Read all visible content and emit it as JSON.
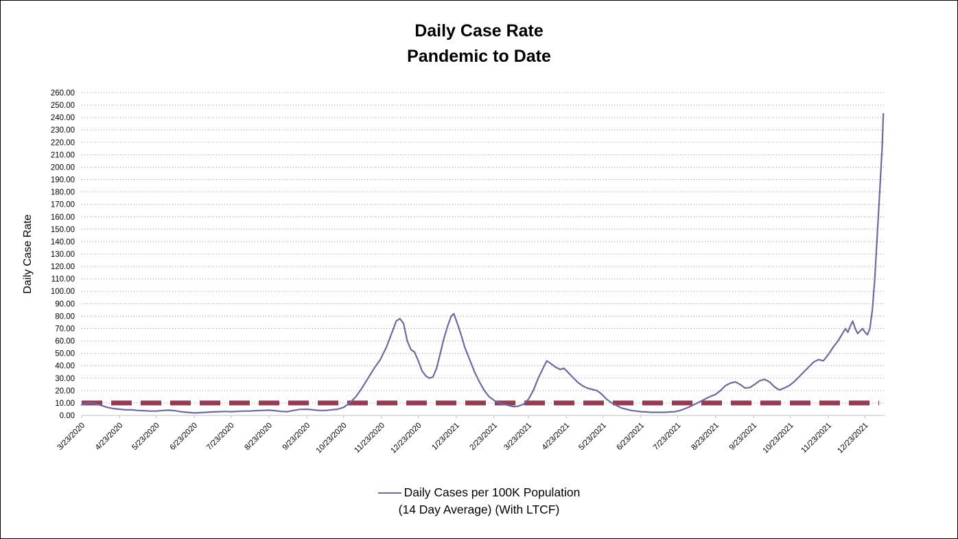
{
  "chart_data": {
    "type": "line",
    "title": "Daily Case Rate",
    "subtitle": "Pandemic to Date",
    "ylabel": "Daily Case Rate",
    "xlabel": "",
    "ylim": [
      0,
      260
    ],
    "y_step": 10,
    "y_tick_format": "0.00",
    "grid": "dotted-horizontal",
    "x_domain": [
      "3/23/2020",
      "1/8/2022"
    ],
    "x_ticks": [
      "3/23/2020",
      "4/23/2020",
      "5/23/2020",
      "6/23/2020",
      "7/23/2020",
      "8/23/2020",
      "9/23/2020",
      "10/23/2020",
      "11/23/2020",
      "12/23/2020",
      "1/23/2021",
      "2/23/2021",
      "3/23/2021",
      "4/23/2021",
      "5/23/2021",
      "6/23/2021",
      "7/23/2021",
      "8/23/2021",
      "9/23/2021",
      "10/23/2021",
      "11/23/2021",
      "12/23/2021"
    ],
    "threshold": {
      "value": 10,
      "style": "dashed",
      "color": "#993a52"
    },
    "legend": {
      "position": "bottom-center",
      "line1": "Daily Cases per 100K Population",
      "line2": "(14 Day Average) (With LTCF)"
    },
    "series": [
      {
        "name": "Daily Cases per 100K Population (14 Day Average) (With LTCF)",
        "color": "#6a69a5",
        "points": [
          [
            "3/23/2020",
            8.5
          ],
          [
            "3/26/2020",
            9.5
          ],
          [
            "3/30/2020",
            10
          ],
          [
            "4/3/2020",
            9.5
          ],
          [
            "4/8/2020",
            8
          ],
          [
            "4/13/2020",
            6.5
          ],
          [
            "4/18/2020",
            5.5
          ],
          [
            "4/23/2020",
            5
          ],
          [
            "4/28/2020",
            4.5
          ],
          [
            "5/3/2020",
            4.5
          ],
          [
            "5/8/2020",
            4
          ],
          [
            "5/13/2020",
            3.8
          ],
          [
            "5/18/2020",
            3.5
          ],
          [
            "5/23/2020",
            3.5
          ],
          [
            "5/28/2020",
            4
          ],
          [
            "6/2/2020",
            4.2
          ],
          [
            "6/7/2020",
            3.8
          ],
          [
            "6/12/2020",
            3
          ],
          [
            "6/17/2020",
            2.5
          ],
          [
            "6/23/2020",
            2
          ],
          [
            "6/28/2020",
            2.2
          ],
          [
            "7/3/2020",
            2.5
          ],
          [
            "7/8/2020",
            2.8
          ],
          [
            "7/13/2020",
            3
          ],
          [
            "7/18/2020",
            3.2
          ],
          [
            "7/23/2020",
            3
          ],
          [
            "7/28/2020",
            3.2
          ],
          [
            "8/2/2020",
            3.5
          ],
          [
            "8/7/2020",
            3.5
          ],
          [
            "8/12/2020",
            3.8
          ],
          [
            "8/17/2020",
            4
          ],
          [
            "8/23/2020",
            4.2
          ],
          [
            "8/28/2020",
            3.8
          ],
          [
            "9/2/2020",
            3.2
          ],
          [
            "9/7/2020",
            3
          ],
          [
            "9/12/2020",
            4
          ],
          [
            "9/17/2020",
            4.8
          ],
          [
            "9/23/2020",
            5
          ],
          [
            "9/28/2020",
            4.5
          ],
          [
            "10/3/2020",
            4
          ],
          [
            "10/8/2020",
            4
          ],
          [
            "10/13/2020",
            4.5
          ],
          [
            "10/18/2020",
            5
          ],
          [
            "10/23/2020",
            6.5
          ],
          [
            "10/28/2020",
            10
          ],
          [
            "11/2/2020",
            15
          ],
          [
            "11/7/2020",
            22
          ],
          [
            "11/12/2020",
            30
          ],
          [
            "11/17/2020",
            38
          ],
          [
            "11/22/2020",
            45
          ],
          [
            "11/27/2020",
            55
          ],
          [
            "12/2/2020",
            68
          ],
          [
            "12/5/2020",
            76
          ],
          [
            "12/8/2020",
            78
          ],
          [
            "12/11/2020",
            74
          ],
          [
            "12/14/2020",
            60
          ],
          [
            "12/17/2020",
            53
          ],
          [
            "12/20/2020",
            51
          ],
          [
            "12/23/2020",
            44
          ],
          [
            "12/26/2020",
            36
          ],
          [
            "12/29/2020",
            32
          ],
          [
            "1/1/2021",
            30
          ],
          [
            "1/4/2021",
            31
          ],
          [
            "1/7/2021",
            38
          ],
          [
            "1/10/2021",
            50
          ],
          [
            "1/13/2021",
            62
          ],
          [
            "1/16/2021",
            72
          ],
          [
            "1/19/2021",
            80
          ],
          [
            "1/21/2021",
            82
          ],
          [
            "1/24/2021",
            74
          ],
          [
            "1/27/2021",
            65
          ],
          [
            "1/30/2021",
            55
          ],
          [
            "2/3/2021",
            45
          ],
          [
            "2/7/2021",
            35
          ],
          [
            "2/11/2021",
            27
          ],
          [
            "2/15/2021",
            20
          ],
          [
            "2/19/2021",
            15
          ],
          [
            "2/23/2021",
            12
          ],
          [
            "2/27/2021",
            10
          ],
          [
            "3/3/2021",
            9
          ],
          [
            "3/7/2021",
            8
          ],
          [
            "3/11/2021",
            7
          ],
          [
            "3/15/2021",
            7.5
          ],
          [
            "3/19/2021",
            9
          ],
          [
            "3/23/2021",
            13
          ],
          [
            "3/27/2021",
            20
          ],
          [
            "3/31/2021",
            30
          ],
          [
            "4/4/2021",
            38
          ],
          [
            "4/7/2021",
            44
          ],
          [
            "4/10/2021",
            42
          ],
          [
            "4/14/2021",
            39
          ],
          [
            "4/18/2021",
            37
          ],
          [
            "4/21/2021",
            38
          ],
          [
            "4/24/2021",
            35
          ],
          [
            "4/28/2021",
            31
          ],
          [
            "5/2/2021",
            27
          ],
          [
            "5/6/2021",
            24
          ],
          [
            "5/10/2021",
            22
          ],
          [
            "5/14/2021",
            21
          ],
          [
            "5/18/2021",
            20
          ],
          [
            "5/22/2021",
            17
          ],
          [
            "5/26/2021",
            13
          ],
          [
            "5/30/2021",
            10
          ],
          [
            "6/3/2021",
            8
          ],
          [
            "6/7/2021",
            6
          ],
          [
            "6/11/2021",
            5
          ],
          [
            "6/15/2021",
            4
          ],
          [
            "6/19/2021",
            3.5
          ],
          [
            "6/23/2021",
            3
          ],
          [
            "6/27/2021",
            2.8
          ],
          [
            "7/1/2021",
            2.5
          ],
          [
            "7/5/2021",
            2.5
          ],
          [
            "7/9/2021",
            2.5
          ],
          [
            "7/13/2021",
            2.5
          ],
          [
            "7/17/2021",
            2.8
          ],
          [
            "7/21/2021",
            3
          ],
          [
            "7/25/2021",
            4
          ],
          [
            "7/29/2021",
            5.5
          ],
          [
            "8/2/2021",
            7
          ],
          [
            "8/6/2021",
            9
          ],
          [
            "8/10/2021",
            11
          ],
          [
            "8/14/2021",
            13
          ],
          [
            "8/18/2021",
            15
          ],
          [
            "8/23/2021",
            17
          ],
          [
            "8/27/2021",
            20
          ],
          [
            "8/31/2021",
            24
          ],
          [
            "9/4/2021",
            26
          ],
          [
            "9/8/2021",
            27
          ],
          [
            "9/12/2021",
            25
          ],
          [
            "9/16/2021",
            22
          ],
          [
            "9/20/2021",
            22.5
          ],
          [
            "9/24/2021",
            25
          ],
          [
            "9/28/2021",
            28
          ],
          [
            "10/2/2021",
            29
          ],
          [
            "10/6/2021",
            27
          ],
          [
            "10/10/2021",
            23
          ],
          [
            "10/14/2021",
            20.5
          ],
          [
            "10/18/2021",
            22
          ],
          [
            "10/22/2021",
            24
          ],
          [
            "10/26/2021",
            27
          ],
          [
            "10/30/2021",
            31
          ],
          [
            "11/3/2021",
            35
          ],
          [
            "11/7/2021",
            39
          ],
          [
            "11/11/2021",
            43
          ],
          [
            "11/15/2021",
            45
          ],
          [
            "11/19/2021",
            44
          ],
          [
            "11/23/2021",
            49
          ],
          [
            "11/27/2021",
            55
          ],
          [
            "12/1/2021",
            60
          ],
          [
            "12/4/2021",
            65
          ],
          [
            "12/7/2021",
            70
          ],
          [
            "12/9/2021",
            67
          ],
          [
            "12/11/2021",
            72
          ],
          [
            "12/13/2021",
            76
          ],
          [
            "12/15/2021",
            70
          ],
          [
            "12/17/2021",
            66
          ],
          [
            "12/19/2021",
            68
          ],
          [
            "12/21/2021",
            70
          ],
          [
            "12/23/2021",
            67
          ],
          [
            "12/25/2021",
            65
          ],
          [
            "12/27/2021",
            70
          ],
          [
            "12/29/2021",
            85
          ],
          [
            "12/31/2021",
            110
          ],
          [
            "1/2/2022",
            145
          ],
          [
            "1/4/2022",
            180
          ],
          [
            "1/6/2022",
            215
          ],
          [
            "1/7/2022",
            243
          ]
        ]
      }
    ]
  }
}
